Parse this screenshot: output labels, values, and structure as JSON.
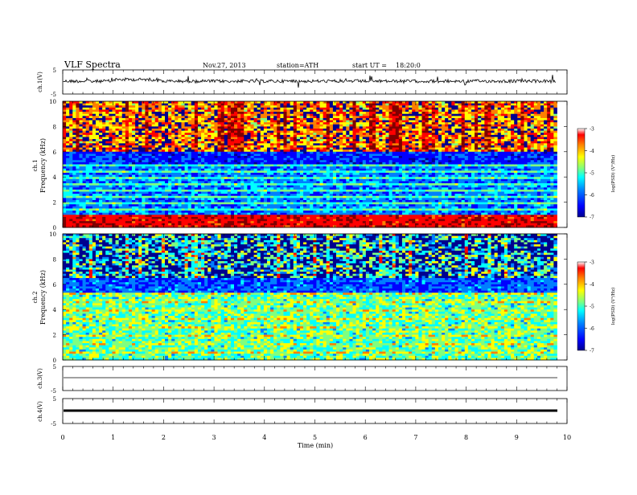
{
  "header": {
    "title": "VLF Spectra",
    "date": "Nov.27, 2013",
    "station": "station=ATH",
    "start": "start UT =",
    "start_time": "18:20:0"
  },
  "chart_data": [
    {
      "type": "line",
      "channel": "ch.1(V)",
      "ylabel": "ch.1(V)",
      "ylim": [
        -5,
        5
      ],
      "yticks": [
        "5",
        "-5"
      ],
      "series": [
        {
          "values_approx": "noisy signal around 0 V",
          "baseline": 0.0
        }
      ]
    },
    {
      "type": "heatmap",
      "channel": "ch.1",
      "ylabel": "ch.1",
      "ylabel2": "Frequency (kHz)",
      "ylim": [
        0,
        10
      ],
      "yticks": [
        "0",
        "2",
        "4",
        "6",
        "8",
        "10"
      ],
      "colorbar": {
        "label": "log(PSD) (V²/Hz)",
        "ticks": [
          "-3",
          "-4",
          "-5",
          "-6",
          "-7"
        ],
        "range": [
          -7,
          -3
        ]
      }
    },
    {
      "type": "heatmap",
      "channel": "ch.2",
      "ylabel": "ch.2",
      "ylabel2": "Frequency (kHz)",
      "ylim": [
        0,
        10
      ],
      "yticks": [
        "0",
        "2",
        "4",
        "6",
        "8",
        "10"
      ],
      "colorbar": {
        "label": "log(PSD) (V²/Hz)",
        "ticks": [
          "-3",
          "-4",
          "-5",
          "-6",
          "-7"
        ],
        "range": [
          -7,
          -3
        ]
      }
    },
    {
      "type": "line",
      "channel": "ch.3(V)",
      "ylabel": "ch.3(V)",
      "ylim": [
        -5,
        5
      ],
      "yticks": [
        "5",
        "-5"
      ],
      "series": [
        {
          "baseline": 0.0
        }
      ]
    },
    {
      "type": "line",
      "channel": "ch.4(V)",
      "ylabel": "ch.4(V)",
      "ylim": [
        -5,
        5
      ],
      "yticks": [
        "5",
        "-5"
      ],
      "series": [
        {
          "baseline": 0.0
        }
      ]
    }
  ],
  "xaxis": {
    "label": "Time (min)",
    "ticks": [
      "0",
      "1",
      "2",
      "3",
      "4",
      "5",
      "6",
      "7",
      "8",
      "9",
      "10"
    ],
    "xlim": [
      0,
      10
    ],
    "data_end": 9.8
  },
  "colors": {
    "jet": [
      "#00008f",
      "#0000ff",
      "#007fff",
      "#00ffff",
      "#7fff7f",
      "#ffff00",
      "#ff7f00",
      "#ff0000",
      "#7f0000"
    ],
    "dark": "#000000"
  }
}
